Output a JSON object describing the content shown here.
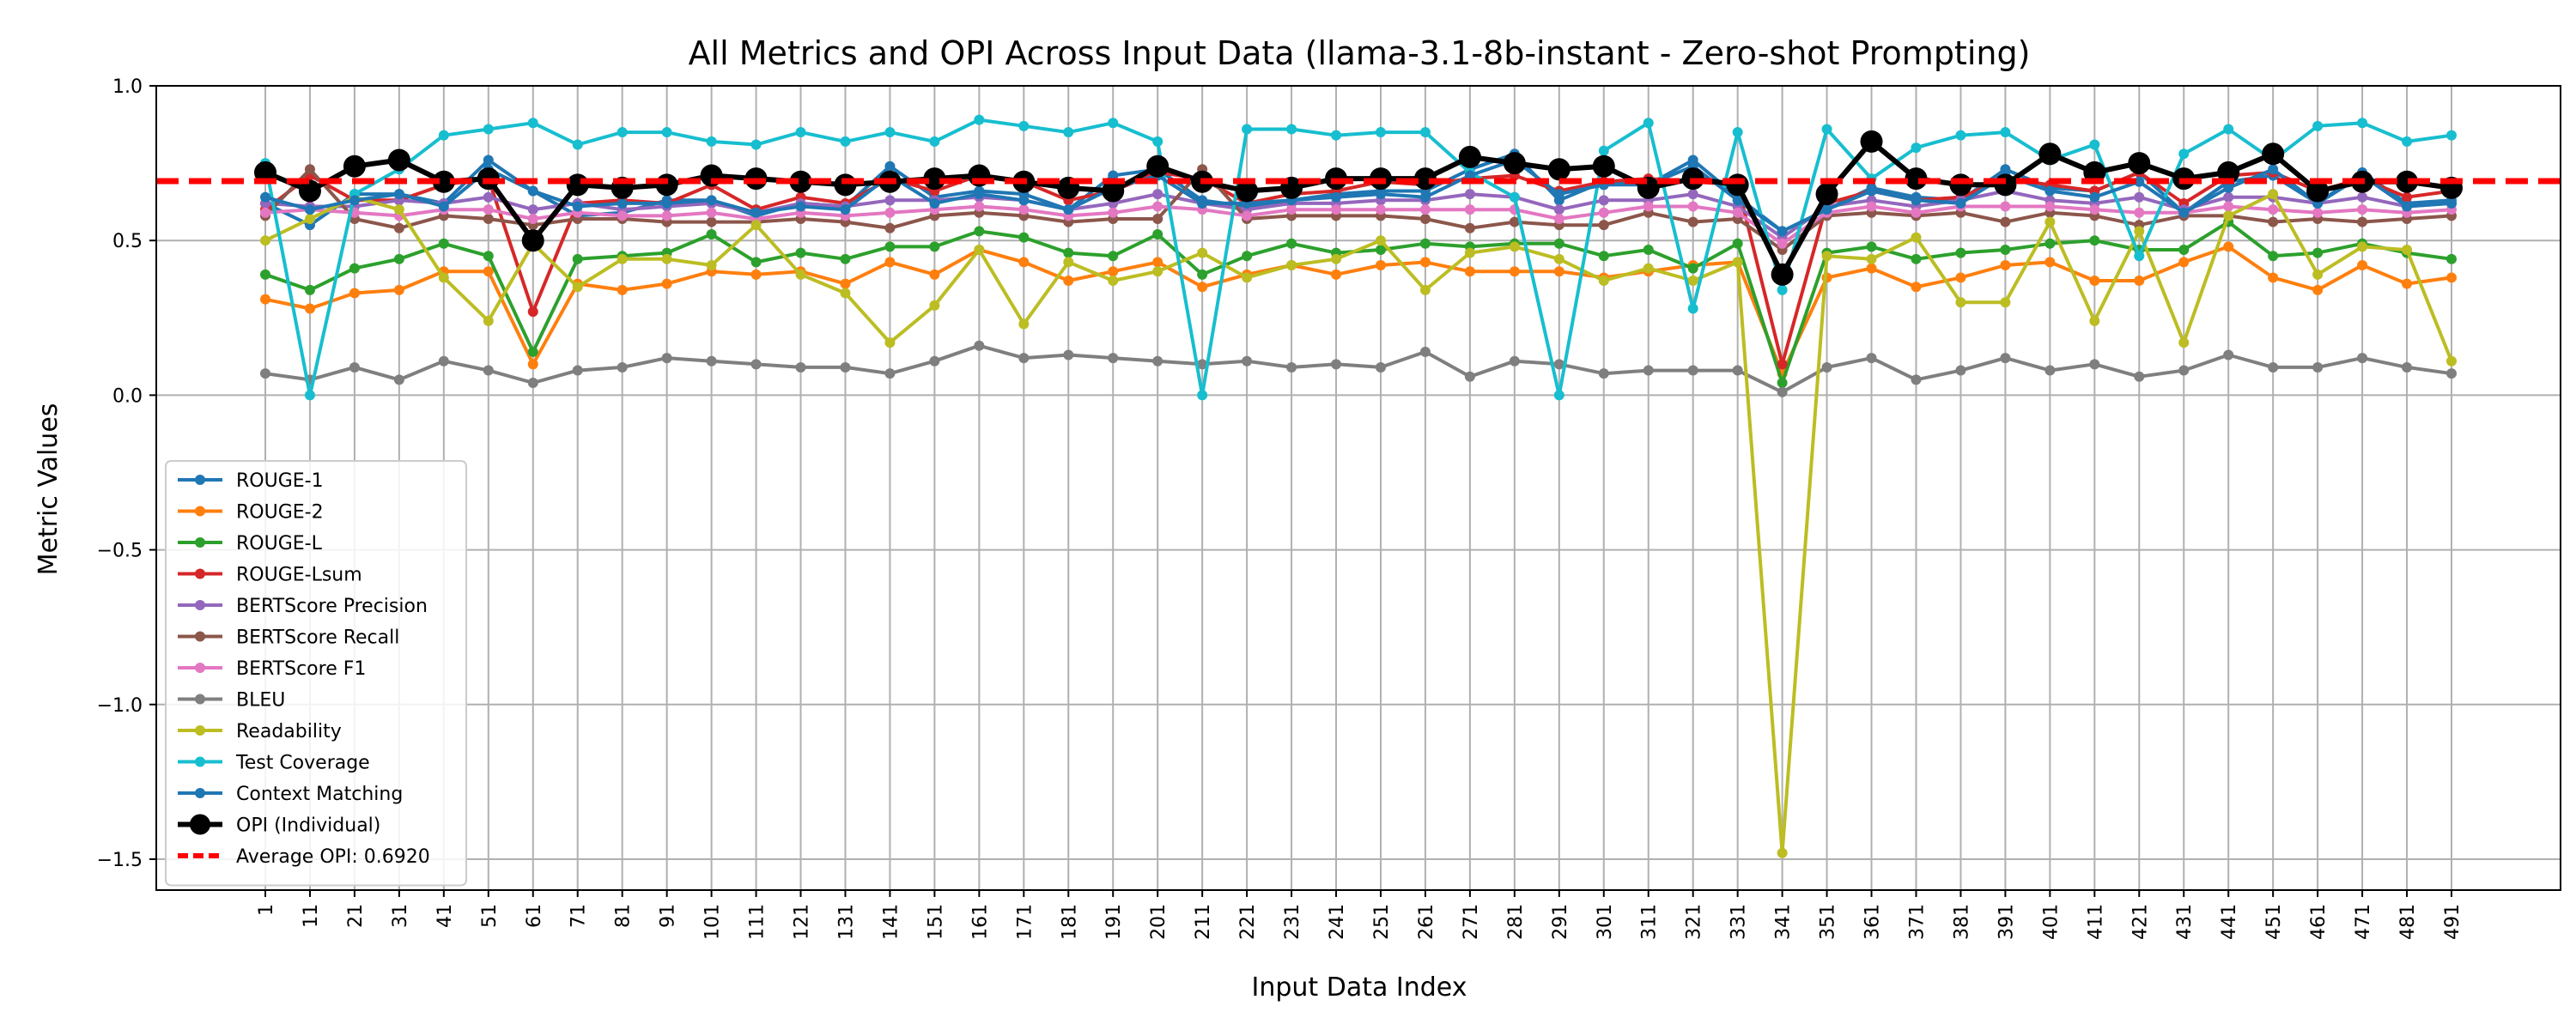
{
  "chart_data": {
    "type": "line",
    "title": "All Metrics and OPI Across Input Data (llama-3.1-8b-instant - Zero-shot Prompting)",
    "xlabel": "Input Data Index",
    "ylabel": "Metric Values",
    "ylim": [
      -1.6,
      1.0
    ],
    "yticks": [
      1.0,
      0.5,
      0.0,
      -0.5,
      -1.0,
      -1.5
    ],
    "ytick_labels": [
      "1.0",
      "0.5",
      "0.0",
      "−0.5",
      "−1.0",
      "−1.5"
    ],
    "grid": true,
    "legend_position": "lower-left",
    "x": [
      "1",
      "11",
      "21",
      "31",
      "41",
      "51",
      "61",
      "71",
      "81",
      "91",
      "101",
      "111",
      "121",
      "131",
      "141",
      "151",
      "161",
      "171",
      "181",
      "191",
      "201",
      "211",
      "221",
      "231",
      "241",
      "251",
      "261",
      "271",
      "281",
      "291",
      "301",
      "311",
      "321",
      "331",
      "341",
      "351",
      "361",
      "371",
      "381",
      "391",
      "401",
      "411",
      "421",
      "431",
      "441",
      "451",
      "461",
      "471",
      "481",
      "491"
    ],
    "series": [
      {
        "name": "ROUGE-1",
        "color": "#1f77b4",
        "values": [
          0.62,
          0.55,
          0.65,
          0.65,
          0.62,
          0.76,
          0.66,
          0.58,
          0.59,
          0.63,
          0.63,
          0.58,
          0.62,
          0.61,
          0.74,
          0.64,
          0.66,
          0.65,
          0.6,
          0.71,
          0.73,
          0.63,
          0.61,
          0.63,
          0.65,
          0.66,
          0.66,
          0.73,
          0.78,
          0.63,
          0.69,
          0.68,
          0.76,
          0.64,
          0.53,
          0.6,
          0.67,
          0.64,
          0.63,
          0.73,
          0.67,
          0.66,
          0.72,
          0.59,
          0.69,
          0.71,
          0.62,
          0.72,
          0.62,
          0.63
        ]
      },
      {
        "name": "ROUGE-2",
        "color": "#ff7f0e",
        "values": [
          0.31,
          0.28,
          0.33,
          0.34,
          0.4,
          0.4,
          0.1,
          0.36,
          0.34,
          0.36,
          0.4,
          0.39,
          0.4,
          0.36,
          0.43,
          0.39,
          0.47,
          0.43,
          0.37,
          0.4,
          0.43,
          0.35,
          0.39,
          0.42,
          0.39,
          0.42,
          0.43,
          0.4,
          0.4,
          0.4,
          0.38,
          0.4,
          0.42,
          0.43,
          0.07,
          0.38,
          0.41,
          0.35,
          0.38,
          0.42,
          0.43,
          0.37,
          0.37,
          0.43,
          0.48,
          0.38,
          0.34,
          0.42,
          0.36,
          0.38
        ]
      },
      {
        "name": "ROUGE-L",
        "color": "#2ca02c",
        "values": [
          0.39,
          0.34,
          0.41,
          0.44,
          0.49,
          0.45,
          0.14,
          0.44,
          0.45,
          0.46,
          0.52,
          0.43,
          0.46,
          0.44,
          0.48,
          0.48,
          0.53,
          0.51,
          0.46,
          0.45,
          0.52,
          0.39,
          0.45,
          0.49,
          0.46,
          0.47,
          0.49,
          0.48,
          0.49,
          0.49,
          0.45,
          0.47,
          0.41,
          0.49,
          0.04,
          0.46,
          0.48,
          0.44,
          0.46,
          0.47,
          0.49,
          0.5,
          0.47,
          0.47,
          0.56,
          0.45,
          0.46,
          0.49,
          0.46,
          0.44
        ]
      },
      {
        "name": "ROUGE-Lsum",
        "color": "#d62728",
        "values": [
          0.6,
          0.71,
          0.63,
          0.63,
          0.68,
          0.7,
          0.27,
          0.62,
          0.63,
          0.62,
          0.68,
          0.6,
          0.64,
          0.62,
          0.7,
          0.66,
          0.71,
          0.69,
          0.63,
          0.66,
          0.72,
          0.7,
          0.62,
          0.65,
          0.66,
          0.69,
          0.68,
          0.7,
          0.71,
          0.66,
          0.69,
          0.7,
          0.69,
          0.68,
          0.1,
          0.62,
          0.66,
          0.63,
          0.64,
          0.7,
          0.68,
          0.66,
          0.72,
          0.62,
          0.71,
          0.72,
          0.66,
          0.7,
          0.64,
          0.66
        ]
      },
      {
        "name": "BERTScore Precision",
        "color": "#9467bd",
        "values": [
          0.62,
          0.61,
          0.61,
          0.63,
          0.62,
          0.64,
          0.6,
          0.62,
          0.6,
          0.61,
          0.62,
          0.59,
          0.62,
          0.61,
          0.63,
          0.63,
          0.64,
          0.63,
          0.6,
          0.62,
          0.65,
          0.62,
          0.6,
          0.62,
          0.62,
          0.63,
          0.63,
          0.65,
          0.64,
          0.6,
          0.63,
          0.63,
          0.65,
          0.61,
          0.51,
          0.61,
          0.63,
          0.61,
          0.63,
          0.66,
          0.63,
          0.62,
          0.64,
          0.6,
          0.64,
          0.64,
          0.62,
          0.64,
          0.61,
          0.62
        ]
      },
      {
        "name": "BERTScore Recall",
        "color": "#8c564b",
        "values": [
          0.58,
          0.73,
          0.57,
          0.54,
          0.58,
          0.57,
          0.55,
          0.57,
          0.57,
          0.56,
          0.56,
          0.56,
          0.57,
          0.56,
          0.54,
          0.58,
          0.59,
          0.58,
          0.56,
          0.57,
          0.57,
          0.73,
          0.57,
          0.58,
          0.58,
          0.58,
          0.57,
          0.54,
          0.56,
          0.55,
          0.55,
          0.59,
          0.56,
          0.57,
          0.47,
          0.58,
          0.59,
          0.58,
          0.59,
          0.56,
          0.59,
          0.58,
          0.55,
          0.58,
          0.58,
          0.56,
          0.57,
          0.56,
          0.57,
          0.58
        ]
      },
      {
        "name": "BERTScore F1",
        "color": "#e377c2",
        "values": [
          0.59,
          0.6,
          0.59,
          0.58,
          0.6,
          0.6,
          0.57,
          0.59,
          0.58,
          0.58,
          0.59,
          0.57,
          0.59,
          0.58,
          0.59,
          0.6,
          0.61,
          0.6,
          0.58,
          0.59,
          0.61,
          0.6,
          0.58,
          0.6,
          0.6,
          0.6,
          0.6,
          0.6,
          0.6,
          0.57,
          0.59,
          0.61,
          0.61,
          0.59,
          0.49,
          0.59,
          0.61,
          0.59,
          0.61,
          0.61,
          0.61,
          0.6,
          0.59,
          0.59,
          0.61,
          0.6,
          0.59,
          0.6,
          0.59,
          0.6
        ]
      },
      {
        "name": "BLEU",
        "color": "#7f7f7f",
        "values": [
          0.07,
          0.05,
          0.09,
          0.05,
          0.11,
          0.08,
          0.04,
          0.08,
          0.09,
          0.12,
          0.11,
          0.1,
          0.09,
          0.09,
          0.07,
          0.11,
          0.16,
          0.12,
          0.13,
          0.12,
          0.11,
          0.1,
          0.11,
          0.09,
          0.1,
          0.09,
          0.14,
          0.06,
          0.11,
          0.1,
          0.07,
          0.08,
          0.08,
          0.08,
          0.01,
          0.09,
          0.12,
          0.05,
          0.08,
          0.12,
          0.08,
          0.1,
          0.06,
          0.08,
          0.13,
          0.09,
          0.09,
          0.12,
          0.09,
          0.07
        ]
      },
      {
        "name": "Readability",
        "color": "#bcbd22",
        "values": [
          0.5,
          0.57,
          0.64,
          0.6,
          0.38,
          0.24,
          0.49,
          0.35,
          0.44,
          0.44,
          0.42,
          0.55,
          0.39,
          0.33,
          0.17,
          0.29,
          0.47,
          0.23,
          0.43,
          0.37,
          0.4,
          0.46,
          0.38,
          0.42,
          0.44,
          0.5,
          0.34,
          0.46,
          0.48,
          0.44,
          0.37,
          0.41,
          0.37,
          0.43,
          -1.48,
          0.45,
          0.44,
          0.51,
          0.3,
          0.3,
          0.56,
          0.24,
          0.53,
          0.17,
          0.58,
          0.65,
          0.39,
          0.48,
          0.47,
          0.11
        ]
      },
      {
        "name": "Test Coverage",
        "color": "#17becf",
        "values": [
          0.75,
          0.0,
          0.65,
          0.73,
          0.84,
          0.86,
          0.88,
          0.81,
          0.85,
          0.85,
          0.82,
          0.81,
          0.85,
          0.82,
          0.85,
          0.82,
          0.89,
          0.87,
          0.85,
          0.88,
          0.82,
          0.0,
          0.86,
          0.86,
          0.84,
          0.85,
          0.85,
          0.72,
          0.64,
          0.0,
          0.79,
          0.88,
          0.28,
          0.85,
          0.34,
          0.86,
          0.7,
          0.8,
          0.84,
          0.85,
          0.76,
          0.81,
          0.45,
          0.78,
          0.86,
          0.76,
          0.87,
          0.88,
          0.82,
          0.84
        ]
      },
      {
        "name": "Context Matching",
        "color": "#1f77b4",
        "values": [
          0.64,
          0.6,
          0.63,
          0.65,
          0.61,
          0.73,
          0.66,
          0.61,
          0.62,
          0.62,
          0.63,
          0.59,
          0.61,
          0.6,
          0.71,
          0.62,
          0.65,
          0.63,
          0.6,
          0.67,
          0.71,
          0.62,
          0.62,
          0.63,
          0.64,
          0.65,
          0.64,
          0.71,
          0.76,
          0.65,
          0.68,
          0.68,
          0.74,
          0.63,
          0.53,
          0.6,
          0.66,
          0.63,
          0.62,
          0.71,
          0.66,
          0.64,
          0.69,
          0.59,
          0.67,
          0.73,
          0.62,
          0.71,
          0.61,
          0.62
        ]
      },
      {
        "name": "OPI (Individual)",
        "color": "#000000",
        "thick": true,
        "values": [
          0.72,
          0.66,
          0.74,
          0.76,
          0.69,
          0.7,
          0.5,
          0.68,
          0.67,
          0.68,
          0.71,
          0.7,
          0.69,
          0.68,
          0.69,
          0.7,
          0.71,
          0.69,
          0.67,
          0.66,
          0.74,
          0.69,
          0.66,
          0.67,
          0.7,
          0.7,
          0.7,
          0.77,
          0.75,
          0.73,
          0.74,
          0.67,
          0.7,
          0.68,
          0.39,
          0.65,
          0.82,
          0.7,
          0.68,
          0.68,
          0.78,
          0.72,
          0.75,
          0.7,
          0.72,
          0.78,
          0.66,
          0.69,
          0.69,
          0.67
        ]
      }
    ],
    "average_opi": {
      "name": "Average OPI: 0.6920",
      "value": 0.692,
      "color": "#ff0000"
    }
  }
}
